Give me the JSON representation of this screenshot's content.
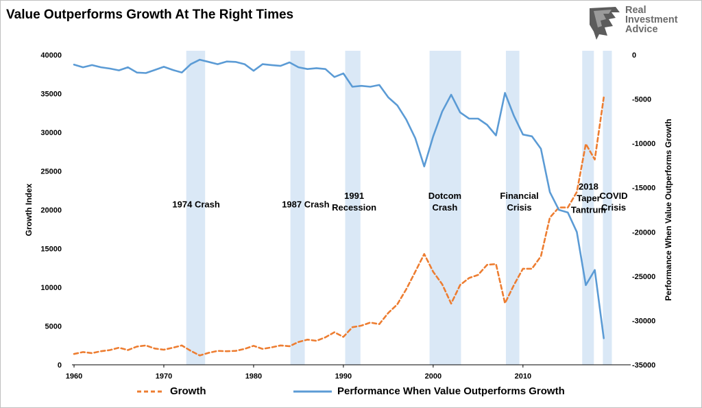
{
  "title": "Value Outperforms Growth At The Right Times",
  "logo": {
    "line1": "Real",
    "line2": "Investment",
    "line3": "Advice"
  },
  "colors": {
    "growth": "#ed7d31",
    "performance": "#5b9bd5",
    "shade": "#dae8f6"
  },
  "chart_data": {
    "type": "line",
    "title": "Value Outperforms Growth At The Right Times",
    "xlabel": "",
    "ylabel": "Growth Index",
    "y2label": "Performance When Value Outperforms Growth",
    "xlim": [
      1960,
      2019
    ],
    "ylim": [
      0,
      40000
    ],
    "y2lim": [
      -35000,
      0
    ],
    "x_ticks": [
      "1960",
      "1970",
      "1980",
      "1990",
      "2000",
      "2010"
    ],
    "y_ticks": [
      "0",
      "5000",
      "10000",
      "15000",
      "20000",
      "25000",
      "30000",
      "35000",
      "40000"
    ],
    "y2_ticks": [
      "0",
      "-5000",
      "-10000",
      "-15000",
      "-20000",
      "-25000",
      "-30000",
      "-35000"
    ],
    "x": [
      1960,
      1961,
      1962,
      1963,
      1964,
      1965,
      1966,
      1967,
      1968,
      1969,
      1970,
      1971,
      1972,
      1973,
      1974,
      1975,
      1976,
      1977,
      1978,
      1979,
      1980,
      1981,
      1982,
      1983,
      1984,
      1985,
      1986,
      1987,
      1988,
      1989,
      1990,
      1991,
      1992,
      1993,
      1994,
      1995,
      1996,
      1997,
      1998,
      1999,
      2000,
      2001,
      2002,
      2003,
      2004,
      2005,
      2006,
      2007,
      2008,
      2009,
      2010,
      2011,
      2012,
      2013,
      2014,
      2015,
      2016,
      2017,
      2018,
      2019
    ],
    "series": [
      {
        "name": "Growth",
        "axis": "left",
        "style": "dashed",
        "values": [
          1400,
          1650,
          1500,
          1750,
          1900,
          2200,
          1900,
          2350,
          2500,
          2100,
          1950,
          2200,
          2500,
          1800,
          1200,
          1550,
          1800,
          1750,
          1800,
          2050,
          2450,
          2050,
          2250,
          2500,
          2400,
          2950,
          3250,
          3100,
          3550,
          4200,
          3600,
          4850,
          5050,
          5450,
          5250,
          6700,
          7800,
          9750,
          12000,
          14300,
          12000,
          10400,
          7900,
          10300,
          11200,
          11600,
          12900,
          13000,
          7950,
          10300,
          12400,
          12400,
          14000,
          19000,
          20300,
          20300,
          22300,
          28500,
          26500,
          34500
        ]
      },
      {
        "name": "Performance When Value Outperforms Growth",
        "axis": "right",
        "style": "solid",
        "values": [
          -1100,
          -1400,
          -1150,
          -1400,
          -1550,
          -1750,
          -1400,
          -2000,
          -2050,
          -1700,
          -1350,
          -1700,
          -2000,
          -1050,
          -550,
          -800,
          -1050,
          -750,
          -800,
          -1050,
          -1800,
          -1050,
          -1150,
          -1250,
          -850,
          -1400,
          -1600,
          -1500,
          -1600,
          -2500,
          -2100,
          -3600,
          -3500,
          -3600,
          -3400,
          -4800,
          -5700,
          -7300,
          -9400,
          -12600,
          -9200,
          -6400,
          -4500,
          -6500,
          -7200,
          -7200,
          -7900,
          -9100,
          -4300,
          -6900,
          -9000,
          -9200,
          -10600,
          -15500,
          -17500,
          -17800,
          -20000,
          -26000,
          -24300,
          -32000
        ]
      }
    ],
    "shaded_regions": [
      {
        "label": "1974 Crash",
        "x0": 1972.5,
        "x1": 1974.6
      },
      {
        "label": "1987 Crash",
        "x0": 1984.1,
        "x1": 1985.7
      },
      {
        "label": "1991 Recession",
        "x0": 1990.2,
        "x1": 1991.9
      },
      {
        "label": "Dotcom Crash",
        "x0": 1999.6,
        "x1": 2003.1
      },
      {
        "label": "Financial Crisis",
        "x0": 2008.1,
        "x1": 2009.6
      },
      {
        "label": "2018 Taper Tantrum",
        "x0": 2016.6,
        "x1": 2017.9
      },
      {
        "label": "COVID Crisis",
        "x0": 2018.9,
        "x1": 2019.9
      }
    ],
    "annotations": [
      {
        "lines": [
          "1974 Crash"
        ],
        "x": 1973.6,
        "y": 20300
      },
      {
        "lines": [
          "1987 Crash"
        ],
        "x": 1985.8,
        "y": 20300
      },
      {
        "lines": [
          "1991",
          "Recession"
        ],
        "x": 1991.2,
        "y": 21400
      },
      {
        "lines": [
          "Dotcom",
          "Crash"
        ],
        "x": 2001.3,
        "y": 21400
      },
      {
        "lines": [
          "Financial",
          "Crisis"
        ],
        "x": 2009.6,
        "y": 21400
      },
      {
        "lines": [
          "2018",
          "Taper",
          "Tantrum"
        ],
        "x": 2017.3,
        "y": 22600
      },
      {
        "lines": [
          "COVID",
          "Crisis"
        ],
        "x": 2020.1,
        "y": 21400
      }
    ],
    "legend_position": "bottom"
  },
  "legend": {
    "growth": "Growth",
    "performance": "Performance When Value Outperforms Growth"
  }
}
